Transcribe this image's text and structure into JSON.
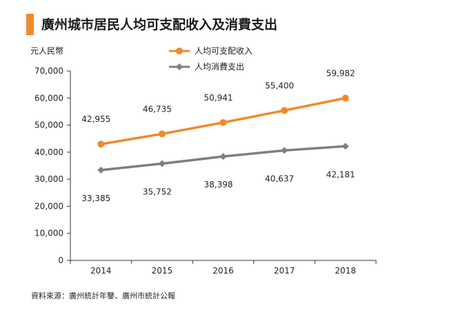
{
  "title": "廣州城市居民人均可支配收入及消費支出",
  "source": "資料來源：廣州統計年鑒、廣州市統計公報",
  "chart_data": {
    "type": "line",
    "title": "廣州城市居民人均可支配收入及消費支出",
    "ylabel": "元人民幣",
    "xlabel": "",
    "categories": [
      "2014",
      "2015",
      "2016",
      "2017",
      "2018"
    ],
    "ylim": [
      0,
      70000
    ],
    "yticks": [
      0,
      10000,
      20000,
      30000,
      40000,
      50000,
      60000,
      70000
    ],
    "ytick_labels": [
      "0",
      "10,000",
      "20,000",
      "30,000",
      "40,000",
      "50,000",
      "60,000",
      "70,000"
    ],
    "grid": false,
    "legend_position": "top",
    "series": [
      {
        "name": "人均可支配收入",
        "color": "#f0892d",
        "marker": "circle",
        "values": [
          42955,
          46735,
          50941,
          55400,
          59982
        ],
        "labels": [
          "42,955",
          "46,735",
          "50,941",
          "55,400",
          "59,982"
        ]
      },
      {
        "name": "人均消費支出",
        "color": "#7f7f7f",
        "marker": "diamond",
        "values": [
          33385,
          35752,
          38398,
          40637,
          42181
        ],
        "labels": [
          "33,385",
          "35,752",
          "38,398",
          "40,637",
          "42,181"
        ]
      }
    ]
  }
}
